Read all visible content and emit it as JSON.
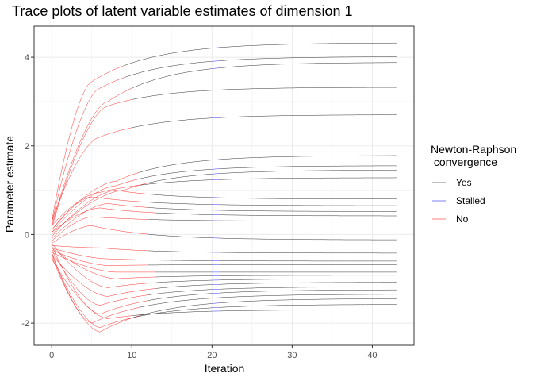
{
  "chart_data": {
    "type": "line",
    "title": "Trace plots of latent variable estimates of dimension 1",
    "xlabel": "Iteration",
    "ylabel": "Parameter estimate",
    "xlim": [
      -2.2,
      45.2
    ],
    "ylim": [
      -2.5,
      4.7
    ],
    "x_ticks": [
      0,
      10,
      20,
      30,
      40
    ],
    "y_ticks": [
      -2,
      0,
      2,
      4
    ],
    "x_tick_labels": [
      "0",
      "10",
      "20",
      "30",
      "40"
    ],
    "y_tick_labels": [
      "-2",
      "0",
      "2",
      "4"
    ],
    "grid": true,
    "legend": {
      "title": "Newton-Raphson\n convergence",
      "position": "right",
      "entries": [
        {
          "label": "Yes",
          "color": "#000000"
        },
        {
          "label": "Stalled",
          "color": "#0000ff"
        },
        {
          "label": "No",
          "color": "#ff0000"
        }
      ]
    },
    "series_common": {
      "start_x": 0,
      "end_x": 43
    },
    "series": [
      {
        "start": 0.3,
        "peak_x": 5,
        "peak": 3.45,
        "final": 4.32,
        "switch_x": 9,
        "stall_x": 20
      },
      {
        "start": 0.25,
        "peak_x": 6,
        "peak": 3.3,
        "final": 4.01,
        "switch_x": 9,
        "stall_x": 20
      },
      {
        "start": 0.2,
        "peak_x": 7,
        "peak": 3.0,
        "final": 3.88,
        "switch_x": 10,
        "stall_x": 20
      },
      {
        "start": 0.15,
        "peak_x": 7,
        "peak": 2.9,
        "final": 3.32,
        "switch_x": 10,
        "stall_x": 20
      },
      {
        "start": 0.3,
        "peak_x": 6,
        "peak": 2.2,
        "final": 2.7,
        "switch_x": 10,
        "stall_x": 20
      },
      {
        "start": 0.1,
        "peak_x": 8,
        "peak": 1.2,
        "final": 1.78,
        "switch_x": 11,
        "stall_x": 20
      },
      {
        "start": 0.05,
        "peak_x": 8,
        "peak": 1.1,
        "final": 1.55,
        "switch_x": 11,
        "stall_x": 20
      },
      {
        "start": 0.0,
        "peak_x": 9,
        "peak": 1.0,
        "final": 1.45,
        "switch_x": 12,
        "stall_x": 20
      },
      {
        "start": 0.2,
        "peak_x": 6,
        "peak": 0.95,
        "final": 1.28,
        "switch_x": 11,
        "stall_x": 20
      },
      {
        "start": -0.05,
        "peak_x": 8,
        "peak": 1.0,
        "final": 0.8,
        "switch_x": 12,
        "stall_x": 20
      },
      {
        "start": 0.1,
        "peak_x": 5,
        "peak": 0.85,
        "final": 0.65,
        "switch_x": 12,
        "stall_x": 20
      },
      {
        "start": -0.1,
        "peak_x": 7,
        "peak": 0.7,
        "final": 0.52,
        "switch_x": 12,
        "stall_x": 20
      },
      {
        "start": 0.05,
        "peak_x": 6,
        "peak": 0.6,
        "final": 0.42,
        "switch_x": 13,
        "stall_x": 20
      },
      {
        "start": -0.15,
        "peak_x": 5,
        "peak": 0.4,
        "final": 0.3,
        "switch_x": 12,
        "stall_x": 20
      },
      {
        "start": -0.2,
        "peak_x": 5,
        "peak": 0.2,
        "final": -0.12,
        "switch_x": 12,
        "stall_x": 20
      },
      {
        "start": -0.25,
        "peak_x": 6,
        "peak": -0.3,
        "final": -0.42,
        "switch_x": 12,
        "stall_x": 20
      },
      {
        "start": -0.3,
        "peak_x": 7,
        "peak": -0.55,
        "final": -0.6,
        "switch_x": 12,
        "stall_x": 20
      },
      {
        "start": -0.35,
        "peak_x": 7,
        "peak": -0.7,
        "final": -0.68,
        "switch_x": 12,
        "stall_x": 20
      },
      {
        "start": -0.4,
        "peak_x": 8,
        "peak": -0.85,
        "final": -0.85,
        "switch_x": 13,
        "stall_x": 20
      },
      {
        "start": -0.3,
        "peak_x": 8,
        "peak": -1.0,
        "final": -0.92,
        "switch_x": 13,
        "stall_x": 20
      },
      {
        "start": -0.2,
        "peak_x": 7,
        "peak": -1.2,
        "final": -1.0,
        "switch_x": 13,
        "stall_x": 20
      },
      {
        "start": -0.45,
        "peak_x": 7,
        "peak": -1.4,
        "final": -1.08,
        "switch_x": 13,
        "stall_x": 20
      },
      {
        "start": -0.35,
        "peak_x": 6,
        "peak": -1.6,
        "final": -1.18,
        "switch_x": 12,
        "stall_x": 20
      },
      {
        "start": -0.25,
        "peak_x": 6,
        "peak": -1.8,
        "final": -1.25,
        "switch_x": 12,
        "stall_x": 20
      },
      {
        "start": -0.4,
        "peak_x": 5,
        "peak": -2.0,
        "final": -1.35,
        "switch_x": 11,
        "stall_x": 20
      },
      {
        "start": -0.5,
        "peak_x": 6,
        "peak": -2.2,
        "final": -1.45,
        "switch_x": 11,
        "stall_x": 20
      },
      {
        "start": -0.45,
        "peak_x": 6,
        "peak": -2.1,
        "final": -1.58,
        "switch_x": 10,
        "stall_x": 20
      },
      {
        "start": -0.55,
        "peak_x": 7,
        "peak": -1.9,
        "final": -1.7,
        "switch_x": 10,
        "stall_x": 20
      }
    ]
  }
}
